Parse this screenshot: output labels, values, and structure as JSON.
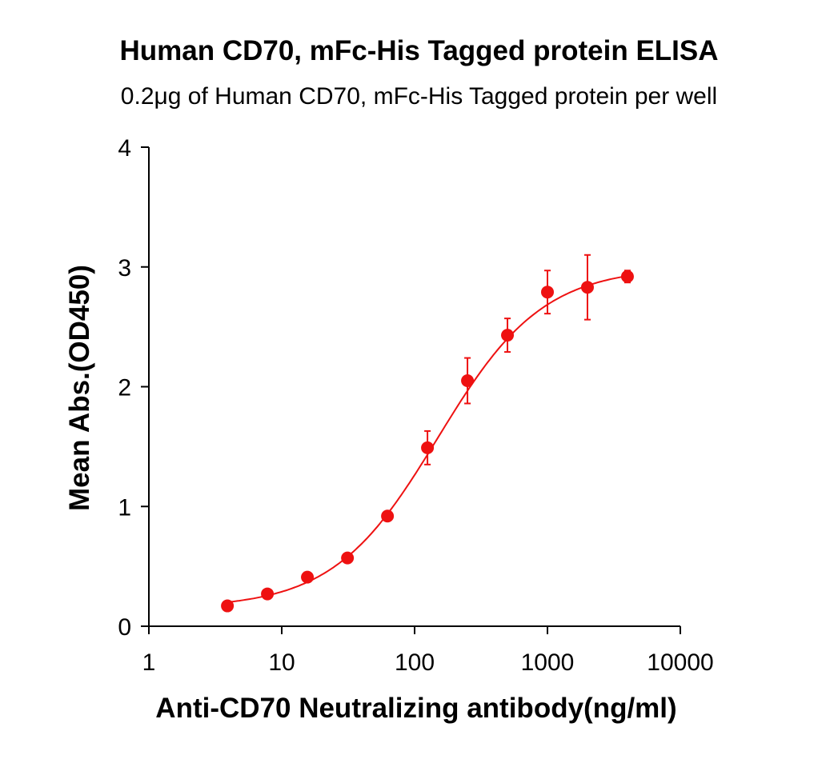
{
  "chart_data": {
    "type": "scatter",
    "title": "Human CD70,  mFc-His Tagged protein ELISA",
    "subtitle": "0.2μg of Human CD70, mFc-His Tagged protein per well",
    "xlabel": "Anti-CD70 Neutralizing antibody(ng/ml)",
    "ylabel": "Mean Abs.(OD450)",
    "xscale": "log",
    "xlim": [
      1,
      10000
    ],
    "ylim": [
      0,
      4
    ],
    "xticks": [
      "1",
      "10",
      "100",
      "1000",
      "10000"
    ],
    "yticks": [
      "0",
      "1",
      "2",
      "3",
      "4"
    ],
    "grid": false,
    "color": "#ee1111",
    "fit_curve": "4-parameter logistic",
    "points": [
      {
        "x": 3.9,
        "y": 0.17,
        "err": 0.02
      },
      {
        "x": 7.8,
        "y": 0.27,
        "err": 0.02
      },
      {
        "x": 15.6,
        "y": 0.41,
        "err": 0.02
      },
      {
        "x": 31.25,
        "y": 0.57,
        "err": 0.02
      },
      {
        "x": 62.5,
        "y": 0.92,
        "err": 0.03
      },
      {
        "x": 125,
        "y": 1.49,
        "err": 0.14
      },
      {
        "x": 250,
        "y": 2.05,
        "err": 0.19
      },
      {
        "x": 500,
        "y": 2.43,
        "err": 0.14
      },
      {
        "x": 1000,
        "y": 2.79,
        "err": 0.18
      },
      {
        "x": 2000,
        "y": 2.83,
        "err": 0.27
      },
      {
        "x": 4000,
        "y": 2.92,
        "err": 0.05
      }
    ]
  }
}
